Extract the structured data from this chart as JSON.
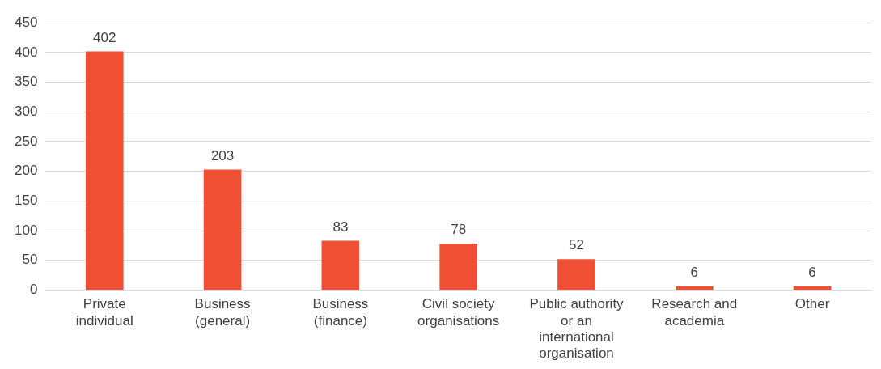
{
  "chart_data": {
    "type": "bar",
    "categories": [
      "Private individual",
      "Business (general)",
      "Business (finance)",
      "Civil society organisations",
      "Public authority or an international organisation",
      "Research and academia",
      "Other"
    ],
    "values": [
      402,
      203,
      83,
      78,
      52,
      6,
      6
    ],
    "color": "#ef4f32",
    "ylim": [
      0,
      450
    ],
    "yticks": [
      0,
      50,
      100,
      150,
      200,
      250,
      300,
      350,
      400,
      450
    ],
    "grid": "y",
    "legend": false,
    "data_labels": true
  }
}
